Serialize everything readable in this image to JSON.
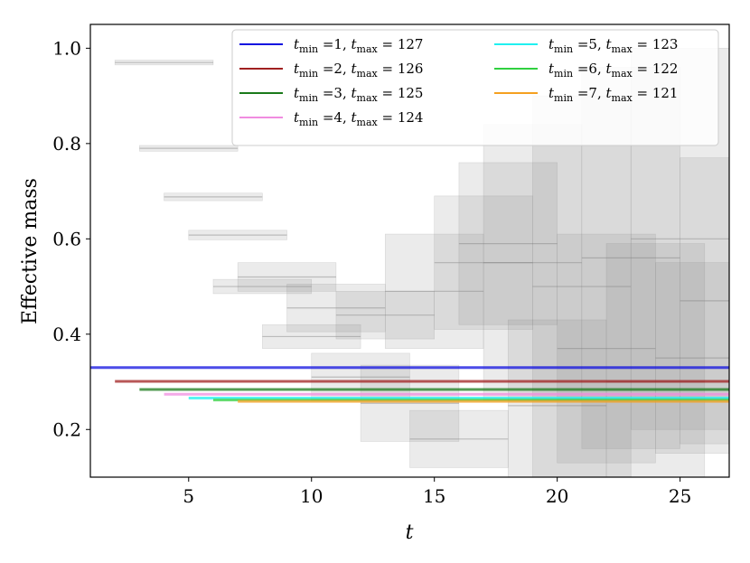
{
  "chart_data": {
    "type": "line",
    "title": "",
    "xlabel": "t",
    "ylabel": "Effective mass",
    "xlim": [
      1,
      27
    ],
    "ylim": [
      0.1,
      1.05
    ],
    "xticks": [
      5,
      10,
      15,
      20,
      25
    ],
    "yticks": [
      0.2,
      0.4,
      0.6,
      0.8,
      1.0
    ],
    "ytick_labels": [
      "0.2",
      "0.4",
      "0.6",
      "0.8",
      "1.0"
    ],
    "legend_position": "top-right",
    "series": [
      {
        "name": "t_min =1, t_max = 127",
        "label_main": "t",
        "sub1": "min",
        "mid": " =1, ",
        "label_t2": "t",
        "sub2": "max",
        "tail": " = 127",
        "color": "#1010e0",
        "x_start": 1,
        "x_end": 27,
        "y": 0.33
      },
      {
        "name": "t_min =2, t_max = 126",
        "label_main": "t",
        "sub1": "min",
        "mid": " =2, ",
        "label_t2": "t",
        "sub2": "max",
        "tail": " = 126",
        "color": "#a02020",
        "x_start": 2,
        "x_end": 27,
        "y": 0.301
      },
      {
        "name": "t_min =3, t_max = 125",
        "label_main": "t",
        "sub1": "min",
        "mid": " =3, ",
        "label_t2": "t",
        "sub2": "max",
        "tail": " = 125",
        "color": "#1a7a1a",
        "x_start": 3,
        "x_end": 27,
        "y": 0.284
      },
      {
        "name": "t_min =4, t_max = 124",
        "label_main": "t",
        "sub1": "min",
        "mid": " =4, ",
        "label_t2": "t",
        "sub2": "max",
        "tail": " = 124",
        "color": "#f08ce0",
        "x_start": 4,
        "x_end": 27,
        "y": 0.274
      },
      {
        "name": "t_min =5, t_max = 123",
        "label_main": "t",
        "sub1": "min",
        "mid": " =5, ",
        "label_t2": "t",
        "sub2": "max",
        "tail": " = 123",
        "color": "#20f0f0",
        "x_start": 5,
        "x_end": 27,
        "y": 0.266
      },
      {
        "name": "t_min =6, t_max = 122",
        "label_main": "t",
        "sub1": "min",
        "mid": " =6, ",
        "label_t2": "t",
        "sub2": "max",
        "tail": " = 122",
        "color": "#30d040",
        "x_start": 6,
        "x_end": 27,
        "y": 0.262
      },
      {
        "name": "t_min =7, t_max = 121",
        "label_main": "t",
        "sub1": "min",
        "mid": " =7, ",
        "label_t2": "t",
        "sub2": "max",
        "tail": " = 121",
        "color": "#f5a020",
        "x_start": 7,
        "x_end": 27,
        "y": 0.259
      }
    ],
    "bands_color": "#808080",
    "bands": [
      {
        "x0": 2,
        "x1": 6,
        "y": 0.97,
        "err": 0.005
      },
      {
        "x0": 3,
        "x1": 7,
        "y": 0.79,
        "err": 0.006
      },
      {
        "x0": 4,
        "x1": 8,
        "y": 0.688,
        "err": 0.008
      },
      {
        "x0": 5,
        "x1": 9,
        "y": 0.608,
        "err": 0.01
      },
      {
        "x0": 6,
        "x1": 10,
        "y": 0.5,
        "err": 0.015
      },
      {
        "x0": 7,
        "x1": 11,
        "y": 0.52,
        "err": 0.03
      },
      {
        "x0": 8,
        "x1": 12,
        "y": 0.395,
        "err": 0.025
      },
      {
        "x0": 9,
        "x1": 13,
        "y": 0.455,
        "err": 0.05
      },
      {
        "x0": 10,
        "x1": 14,
        "y": 0.31,
        "err": 0.05
      },
      {
        "x0": 11,
        "x1": 15,
        "y": 0.44,
        "err": 0.05
      },
      {
        "x0": 12,
        "x1": 16,
        "y": 0.255,
        "err": 0.08
      },
      {
        "x0": 13,
        "x1": 17,
        "y": 0.49,
        "err": 0.12
      },
      {
        "x0": 14,
        "x1": 18,
        "y": 0.18,
        "err": 0.06
      },
      {
        "x0": 15,
        "x1": 19,
        "y": 0.55,
        "err": 0.14
      },
      {
        "x0": 16,
        "x1": 20,
        "y": 0.59,
        "err": 0.17
      },
      {
        "x0": 17,
        "x1": 21,
        "y": 0.55,
        "err": 0.29
      },
      {
        "x0": 18,
        "x1": 22,
        "y": 0.25,
        "err": 0.18
      },
      {
        "x0": 19,
        "x1": 23,
        "y": 0.5,
        "err": 0.4
      },
      {
        "x0": 20,
        "x1": 24,
        "y": 0.37,
        "err": 0.24
      },
      {
        "x0": 21,
        "x1": 25,
        "y": 0.56,
        "err": 0.4
      },
      {
        "x0": 22,
        "x1": 26,
        "y": 0.3,
        "err": 0.29
      },
      {
        "x0": 23,
        "x1": 27,
        "y": 0.6,
        "err": 0.4
      },
      {
        "x0": 24,
        "x1": 28,
        "y": 0.35,
        "err": 0.2
      },
      {
        "x0": 25,
        "x1": 29,
        "y": 0.47,
        "err": 0.3
      }
    ]
  }
}
